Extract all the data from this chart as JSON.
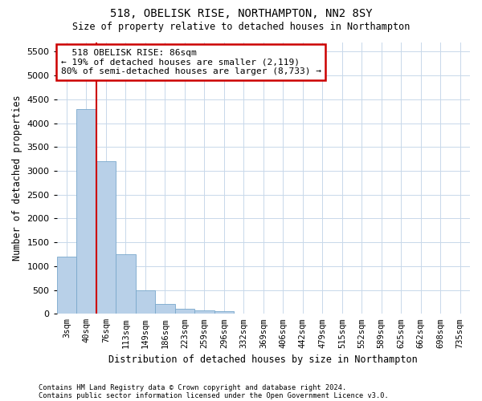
{
  "title1": "518, OBELISK RISE, NORTHAMPTON, NN2 8SY",
  "title2": "Size of property relative to detached houses in Northampton",
  "xlabel": "Distribution of detached houses by size in Northampton",
  "ylabel": "Number of detached properties",
  "annotation_line1": "518 OBELISK RISE: 86sqm",
  "annotation_line2": "← 19% of detached houses are smaller (2,119)",
  "annotation_line3": "80% of semi-detached houses are larger (8,733) →",
  "footnote1": "Contains HM Land Registry data © Crown copyright and database right 2024.",
  "footnote2": "Contains public sector information licensed under the Open Government Licence v3.0.",
  "bar_color": "#b8d0e8",
  "bar_edge_color": "#7aa8cc",
  "marker_line_color": "#cc0000",
  "annotation_box_edge_color": "#cc0000",
  "background_color": "#ffffff",
  "grid_color": "#c8d8ea",
  "categories": [
    "3sqm",
    "40sqm",
    "76sqm",
    "113sqm",
    "149sqm",
    "186sqm",
    "223sqm",
    "259sqm",
    "296sqm",
    "332sqm",
    "369sqm",
    "406sqm",
    "442sqm",
    "479sqm",
    "515sqm",
    "552sqm",
    "589sqm",
    "625sqm",
    "662sqm",
    "698sqm",
    "735sqm"
  ],
  "values": [
    1200,
    4300,
    3200,
    1250,
    500,
    200,
    100,
    80,
    55,
    0,
    0,
    0,
    0,
    0,
    0,
    0,
    0,
    0,
    0,
    0,
    0
  ],
  "marker_bin_index": 2,
  "ylim": [
    0,
    5700
  ],
  "yticks": [
    0,
    500,
    1000,
    1500,
    2000,
    2500,
    3000,
    3500,
    4000,
    4500,
    5000,
    5500
  ]
}
